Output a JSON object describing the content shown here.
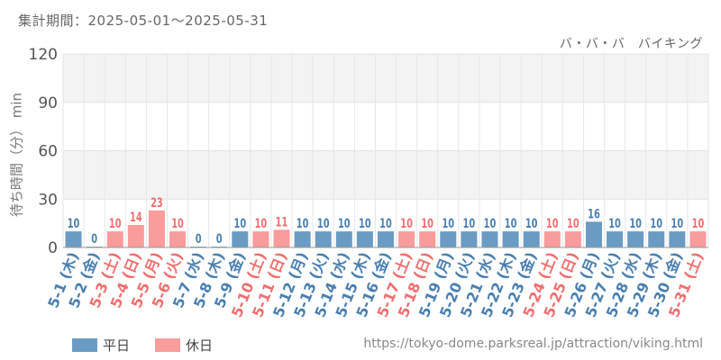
{
  "header": {
    "period_label": "集計期間：2025-05-01～2025-05-31",
    "attraction_name": "バ・バ・バ　バイキング"
  },
  "footer": {
    "source_url": "https://tokyo-dome.parksreal.jp/attraction/viking.html"
  },
  "colors": {
    "weekday": "#6b9bc3",
    "holiday": "#f99c9c",
    "weekday_text": "#4a7fb0",
    "holiday_text": "#ee6f6f"
  },
  "chart_data": {
    "type": "bar",
    "ylabel": "待ち時間（分） min",
    "ylim": [
      0,
      120
    ],
    "yticks": [
      0,
      30,
      60,
      90,
      120
    ],
    "grid": true,
    "legend_position": "bottom-left",
    "legend": [
      {
        "name": "平日",
        "key": "weekday"
      },
      {
        "name": "休日",
        "key": "holiday"
      }
    ],
    "categories": [
      "5-1 (木)",
      "5-2 (金)",
      "5-3 (土)",
      "5-4 (日)",
      "5-5 (月)",
      "5-6 (火)",
      "5-7 (水)",
      "5-8 (木)",
      "5-9 (金)",
      "5-10 (土)",
      "5-11 (日)",
      "5-12 (月)",
      "5-13 (火)",
      "5-14 (水)",
      "5-15 (木)",
      "5-16 (金)",
      "5-17 (土)",
      "5-18 (日)",
      "5-19 (月)",
      "5-20 (火)",
      "5-21 (水)",
      "5-22 (木)",
      "5-23 (金)",
      "5-24 (土)",
      "5-25 (日)",
      "5-26 (月)",
      "5-27 (火)",
      "5-28 (水)",
      "5-29 (木)",
      "5-30 (金)",
      "5-31 (土)"
    ],
    "values": [
      10,
      0,
      10,
      14,
      23,
      10,
      0,
      0,
      10,
      10,
      11,
      10,
      10,
      10,
      10,
      10,
      10,
      10,
      10,
      10,
      10,
      10,
      10,
      10,
      10,
      16,
      10,
      10,
      10,
      10,
      10
    ],
    "day_type": [
      "weekday",
      "weekday",
      "holiday",
      "holiday",
      "holiday",
      "holiday",
      "weekday",
      "weekday",
      "weekday",
      "holiday",
      "holiday",
      "weekday",
      "weekday",
      "weekday",
      "weekday",
      "weekday",
      "holiday",
      "holiday",
      "weekday",
      "weekday",
      "weekday",
      "weekday",
      "weekday",
      "holiday",
      "holiday",
      "weekday",
      "weekday",
      "weekday",
      "weekday",
      "weekday",
      "holiday"
    ]
  }
}
